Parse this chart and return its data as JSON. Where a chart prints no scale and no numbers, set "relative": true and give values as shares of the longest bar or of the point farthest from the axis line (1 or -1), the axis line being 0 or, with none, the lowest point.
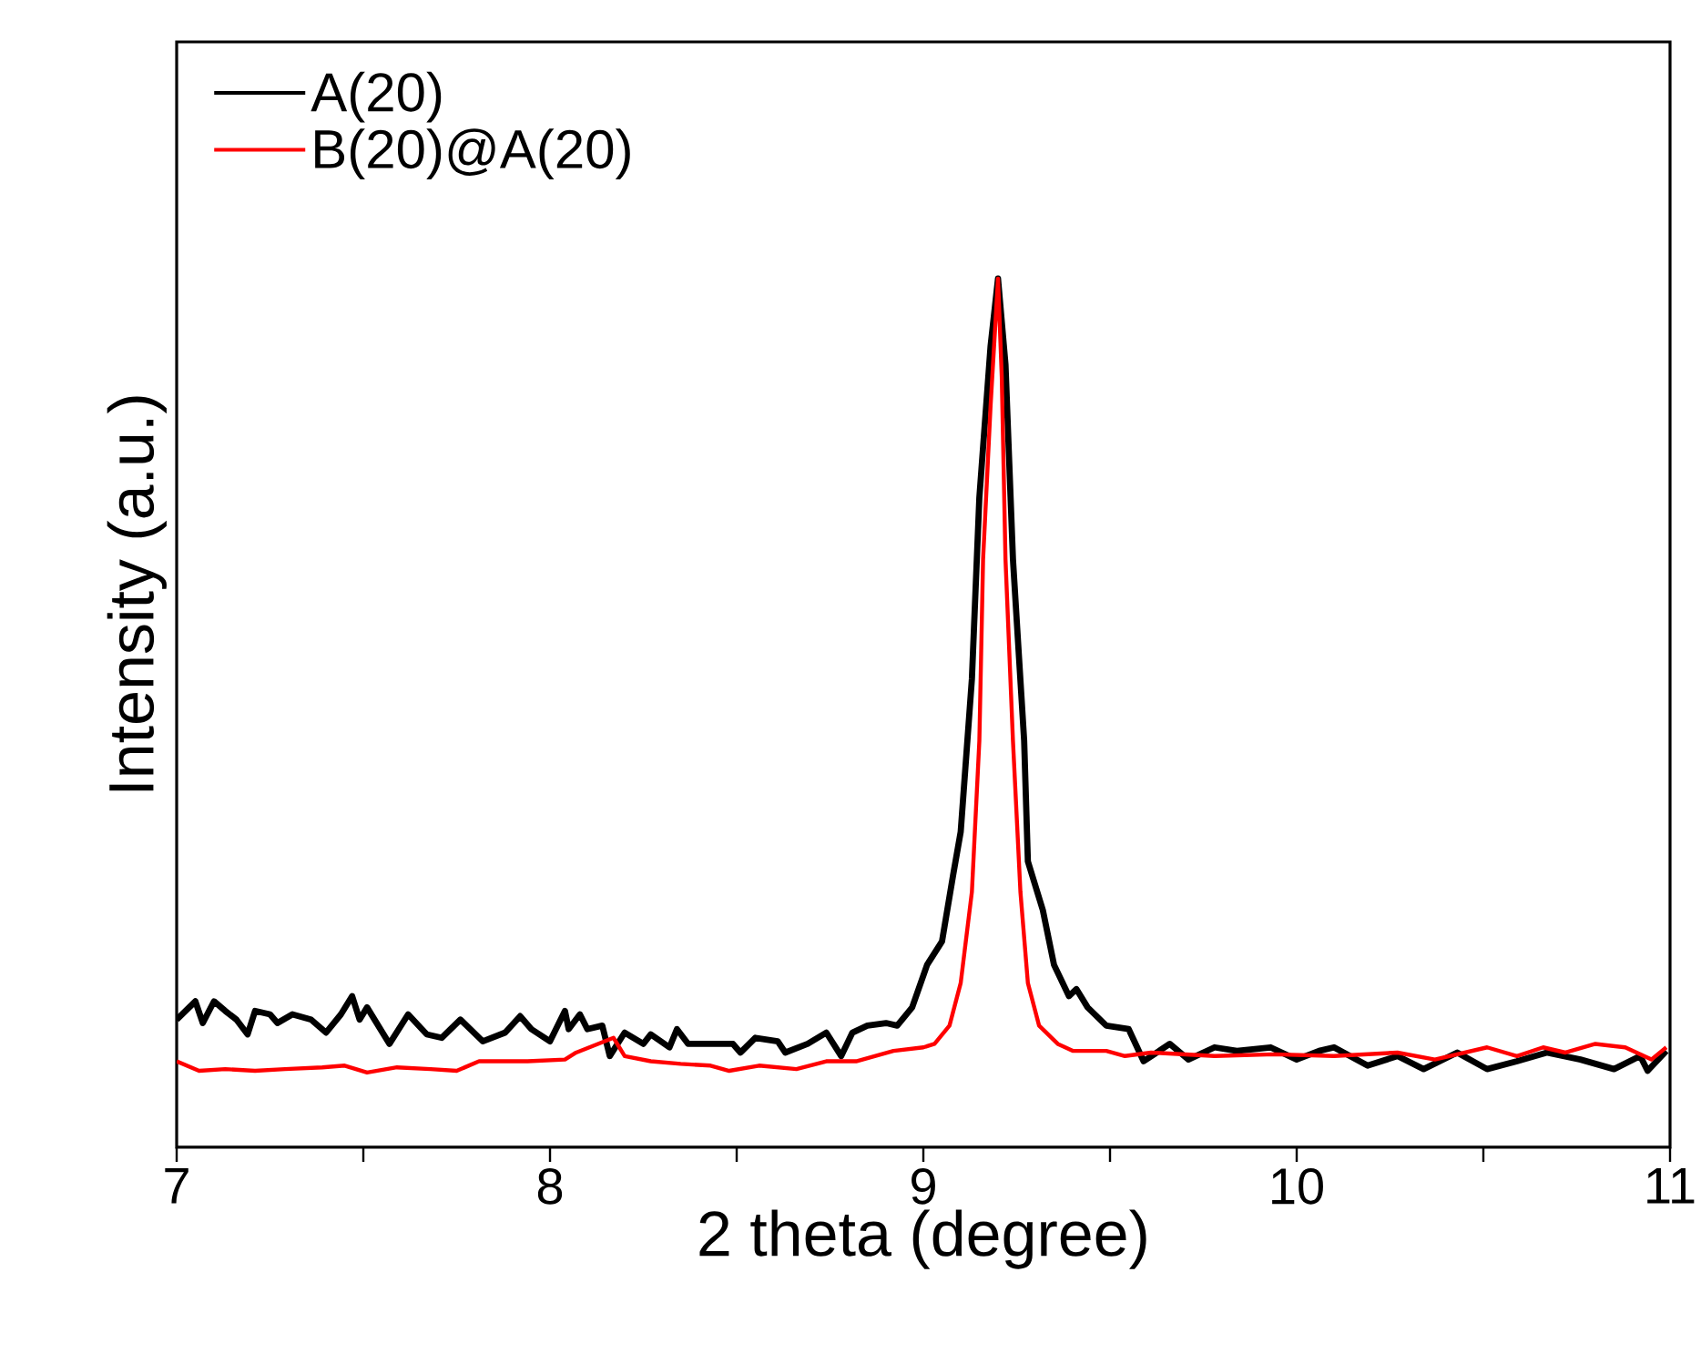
{
  "chart_data": {
    "type": "line",
    "relative": true,
    "xlabel": "2 theta (degree)",
    "ylabel": "Intensity (a.u.)",
    "xlim": [
      7,
      11
    ],
    "xticks": [
      7,
      {
        "value": 7.5,
        "label": null
      },
      8,
      {
        "value": 8.5,
        "label": null
      },
      9,
      {
        "value": 9.5,
        "label": null
      },
      10,
      {
        "value": 10.5,
        "label": null
      },
      11
    ],
    "legend": "top left",
    "line_style": "solid",
    "series": [
      {
        "name": "A(20)",
        "color": "#000000",
        "x": [
          7.0,
          7.05,
          7.07,
          7.1,
          7.13,
          7.16,
          7.19,
          7.21,
          7.25,
          7.27,
          7.31,
          7.36,
          7.4,
          7.44,
          7.47,
          7.49,
          7.51,
          7.57,
          7.62,
          7.67,
          7.71,
          7.76,
          7.82,
          7.88,
          7.92,
          7.95,
          8.0,
          8.04,
          8.05,
          8.08,
          8.1,
          8.14,
          8.16,
          8.2,
          8.25,
          8.27,
          8.32,
          8.34,
          8.37,
          8.43,
          8.49,
          8.51,
          8.55,
          8.61,
          8.63,
          8.69,
          8.74,
          8.78,
          8.81,
          8.85,
          8.9,
          8.93,
          8.97,
          9.01,
          9.05,
          9.08,
          9.1,
          9.13,
          9.15,
          9.18,
          9.2,
          9.22,
          9.24,
          9.27,
          9.28,
          9.32,
          9.35,
          9.39,
          9.41,
          9.44,
          9.49,
          9.55,
          9.59,
          9.66,
          9.71,
          9.78,
          9.84,
          9.93,
          10.0,
          10.06,
          10.1,
          10.19,
          10.27,
          10.34,
          10.43,
          10.51,
          10.59,
          10.67,
          10.76,
          10.85,
          10.92,
          10.94,
          10.99
        ],
        "values": [
          0.147,
          0.168,
          0.143,
          0.168,
          0.157,
          0.147,
          0.13,
          0.157,
          0.153,
          0.143,
          0.153,
          0.147,
          0.132,
          0.153,
          0.174,
          0.147,
          0.161,
          0.119,
          0.153,
          0.13,
          0.126,
          0.147,
          0.122,
          0.132,
          0.151,
          0.136,
          0.122,
          0.157,
          0.136,
          0.153,
          0.136,
          0.14,
          0.105,
          0.132,
          0.119,
          0.13,
          0.115,
          0.136,
          0.119,
          0.119,
          0.119,
          0.109,
          0.126,
          0.122,
          0.109,
          0.119,
          0.132,
          0.105,
          0.132,
          0.14,
          0.143,
          0.14,
          0.161,
          0.21,
          0.237,
          0.314,
          0.363,
          0.539,
          0.748,
          0.922,
          1.0,
          0.901,
          0.677,
          0.468,
          0.329,
          0.273,
          0.21,
          0.174,
          0.182,
          0.161,
          0.14,
          0.136,
          0.099,
          0.119,
          0.101,
          0.115,
          0.111,
          0.115,
          0.101,
          0.111,
          0.115,
          0.094,
          0.105,
          0.09,
          0.109,
          0.09,
          0.099,
          0.109,
          0.101,
          0.09,
          0.105,
          0.088,
          0.111
        ]
      },
      {
        "name": "B(20)@A(20)",
        "color": "#ff0000",
        "x": [
          7.0,
          7.06,
          7.13,
          7.21,
          7.29,
          7.39,
          7.45,
          7.51,
          7.59,
          7.68,
          7.75,
          7.81,
          7.88,
          7.94,
          8.04,
          8.07,
          8.17,
          8.2,
          8.27,
          8.35,
          8.43,
          8.48,
          8.56,
          8.66,
          8.74,
          8.82,
          8.92,
          9.0,
          9.03,
          9.07,
          9.1,
          9.13,
          9.15,
          9.16,
          9.18,
          9.2,
          9.21,
          9.22,
          9.24,
          9.26,
          9.28,
          9.31,
          9.36,
          9.4,
          9.49,
          9.54,
          9.61,
          9.78,
          9.94,
          10.1,
          10.27,
          10.37,
          10.51,
          10.59,
          10.66,
          10.72,
          10.8,
          10.88,
          10.95,
          10.99
        ],
        "values": [
          0.099,
          0.088,
          0.09,
          0.088,
          0.09,
          0.092,
          0.094,
          0.086,
          0.092,
          0.09,
          0.088,
          0.099,
          0.099,
          0.099,
          0.101,
          0.109,
          0.126,
          0.105,
          0.099,
          0.096,
          0.094,
          0.088,
          0.094,
          0.09,
          0.099,
          0.099,
          0.111,
          0.115,
          0.119,
          0.14,
          0.189,
          0.294,
          0.468,
          0.677,
          0.853,
          1.0,
          0.887,
          0.677,
          0.468,
          0.294,
          0.189,
          0.14,
          0.119,
          0.111,
          0.111,
          0.105,
          0.109,
          0.105,
          0.107,
          0.105,
          0.109,
          0.101,
          0.115,
          0.105,
          0.115,
          0.109,
          0.119,
          0.115,
          0.101,
          0.115
        ]
      }
    ]
  }
}
